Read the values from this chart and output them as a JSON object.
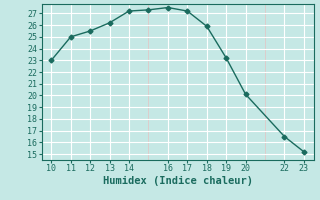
{
  "x": [
    10,
    11,
    12,
    13,
    14,
    15,
    16,
    17,
    18,
    19,
    20,
    22,
    23
  ],
  "y": [
    23,
    25,
    25.5,
    26.2,
    27.2,
    27.3,
    27.5,
    27.2,
    25.9,
    23.2,
    20.1,
    16.5,
    15.2
  ],
  "xlabel": "Humidex (Indice chaleur)",
  "xlim": [
    9.5,
    23.5
  ],
  "ylim": [
    14.5,
    27.8
  ],
  "yticks": [
    15,
    16,
    17,
    18,
    19,
    20,
    21,
    22,
    23,
    24,
    25,
    26,
    27
  ],
  "xticks": [
    10,
    11,
    12,
    13,
    14,
    16,
    17,
    18,
    19,
    20,
    22,
    23
  ],
  "line_color": "#1a6b5e",
  "marker": "D",
  "marker_size": 2.5,
  "bg_color": "#c5e8e5",
  "grid_major_color": "#ffffff",
  "grid_minor_color": "#e0c8c8",
  "xlabel_fontsize": 7.5,
  "tick_fontsize": 6
}
